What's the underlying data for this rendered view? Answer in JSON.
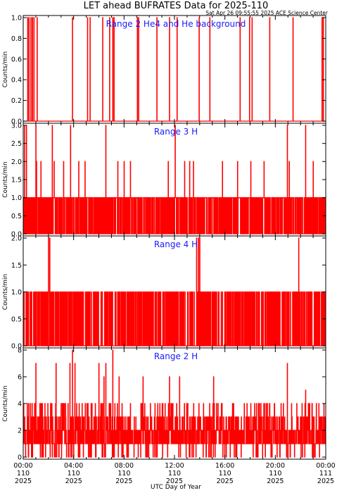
{
  "figure": {
    "title": "LET ahead BUFRATES Data for 2025-110",
    "timestamp": "Sat Apr 26 09:55:55 2025 ACE Science Center",
    "xlabel": "UTC Day of Year",
    "series_color": "#ff0000",
    "label_color": "#1a1aff"
  },
  "chart_data": [
    {
      "type": "line",
      "title": "Range 2 He4 and He background",
      "ylabel": "Counts/min",
      "xlim": [
        0,
        24
      ],
      "ylim": [
        0,
        1.0
      ],
      "yticks": [
        0.0,
        0.2,
        0.4,
        0.6,
        0.8,
        1.0
      ],
      "ytick_labels": [
        "0.0",
        "0.2",
        "0.4",
        "0.6",
        "0.8",
        "1.0"
      ],
      "x_unit": "hours since 2025-110 00:00 UTC",
      "spikes": [
        {
          "x": 0.35,
          "y": 1
        },
        {
          "x": 0.45,
          "y": 1
        },
        {
          "x": 0.6,
          "y": 1
        },
        {
          "x": 0.72,
          "y": 1
        },
        {
          "x": 0.85,
          "y": 1
        },
        {
          "x": 1.1,
          "y": 1
        },
        {
          "x": 3.9,
          "y": 1
        },
        {
          "x": 5.1,
          "y": 1
        },
        {
          "x": 5.3,
          "y": 1
        },
        {
          "x": 6.3,
          "y": 1
        },
        {
          "x": 6.85,
          "y": 1
        },
        {
          "x": 7.1,
          "y": 1
        },
        {
          "x": 7.2,
          "y": 1
        },
        {
          "x": 9.05,
          "y": 1
        },
        {
          "x": 9.15,
          "y": 1
        },
        {
          "x": 10.6,
          "y": 1
        },
        {
          "x": 11.6,
          "y": 1
        },
        {
          "x": 12.2,
          "y": 1
        },
        {
          "x": 13.95,
          "y": 1
        },
        {
          "x": 14.8,
          "y": 1
        },
        {
          "x": 17.2,
          "y": 1
        },
        {
          "x": 17.95,
          "y": 1
        },
        {
          "x": 18.15,
          "y": 1
        },
        {
          "x": 19.55,
          "y": 1
        },
        {
          "x": 21.4,
          "y": 1
        },
        {
          "x": 23.7,
          "y": 1
        },
        {
          "x": 23.8,
          "y": 1
        }
      ]
    },
    {
      "type": "line",
      "title": "Range 3 H",
      "ylabel": "Counts/min",
      "xlim": [
        0,
        24
      ],
      "ylim": [
        0,
        3.0
      ],
      "yticks": [
        0.0,
        0.5,
        1.0,
        1.5,
        2.0,
        2.5,
        3.0
      ],
      "ytick_labels": [
        "0.0",
        "0.5",
        "1.0",
        "1.5",
        "2.0",
        "2.5",
        "3.0"
      ],
      "x_unit": "hours since 2025-110 00:00 UTC",
      "baseline_levels": [
        0,
        1
      ],
      "spikes": [
        {
          "x": 0.1,
          "y": 3
        },
        {
          "x": 0.25,
          "y": 3
        },
        {
          "x": 1.0,
          "y": 3
        },
        {
          "x": 1.05,
          "y": 2
        },
        {
          "x": 1.4,
          "y": 2
        },
        {
          "x": 2.3,
          "y": 3
        },
        {
          "x": 2.45,
          "y": 2
        },
        {
          "x": 3.2,
          "y": 2
        },
        {
          "x": 3.75,
          "y": 3
        },
        {
          "x": 4.4,
          "y": 2
        },
        {
          "x": 4.9,
          "y": 2
        },
        {
          "x": 6.55,
          "y": 3
        },
        {
          "x": 7.5,
          "y": 2
        },
        {
          "x": 8.0,
          "y": 2
        },
        {
          "x": 8.5,
          "y": 2
        },
        {
          "x": 11.5,
          "y": 2
        },
        {
          "x": 12.05,
          "y": 3
        },
        {
          "x": 12.8,
          "y": 2
        },
        {
          "x": 13.2,
          "y": 2
        },
        {
          "x": 13.5,
          "y": 2
        },
        {
          "x": 15.8,
          "y": 2
        },
        {
          "x": 17.0,
          "y": 2
        },
        {
          "x": 18.05,
          "y": 2
        },
        {
          "x": 19.1,
          "y": 2
        },
        {
          "x": 20.95,
          "y": 3
        },
        {
          "x": 21.1,
          "y": 2
        },
        {
          "x": 22.4,
          "y": 3
        },
        {
          "x": 23.0,
          "y": 2
        }
      ]
    },
    {
      "type": "line",
      "title": "Range 4 H",
      "ylabel": "Counts/min",
      "xlim": [
        0,
        24
      ],
      "ylim": [
        0,
        2.0
      ],
      "yticks": [
        0.0,
        0.5,
        1.0,
        1.5,
        2.0
      ],
      "ytick_labels": [
        "0.0",
        "0.5",
        "1.0",
        "1.5",
        "2.0"
      ],
      "x_unit": "hours since 2025-110 00:00 UTC",
      "baseline_levels": [
        0,
        1
      ],
      "spikes": [
        {
          "x": 2.0,
          "y": 2
        },
        {
          "x": 2.1,
          "y": 2
        },
        {
          "x": 13.75,
          "y": 2
        },
        {
          "x": 13.9,
          "y": 2
        },
        {
          "x": 14.0,
          "y": 2
        },
        {
          "x": 21.85,
          "y": 2
        }
      ]
    },
    {
      "type": "line",
      "title": "Range 2 H",
      "ylabel": "Counts/min",
      "xlim": [
        0,
        24
      ],
      "ylim": [
        0,
        8
      ],
      "yticks": [
        0,
        2,
        4,
        6,
        8
      ],
      "ytick_labels": [
        "0",
        "2",
        "4",
        "6",
        "8"
      ],
      "x_unit": "hours since 2025-110 00:00 UTC",
      "typical_range": [
        0,
        4
      ],
      "spikes": [
        {
          "x": 1.0,
          "y": 7
        },
        {
          "x": 2.6,
          "y": 7
        },
        {
          "x": 3.7,
          "y": 7
        },
        {
          "x": 3.9,
          "y": 8
        },
        {
          "x": 4.1,
          "y": 7
        },
        {
          "x": 6.0,
          "y": 7
        },
        {
          "x": 6.4,
          "y": 6
        },
        {
          "x": 6.55,
          "y": 7
        },
        {
          "x": 7.1,
          "y": 8
        },
        {
          "x": 7.6,
          "y": 6
        },
        {
          "x": 9.5,
          "y": 6
        },
        {
          "x": 11.6,
          "y": 6
        },
        {
          "x": 12.4,
          "y": 6
        },
        {
          "x": 15.1,
          "y": 6
        },
        {
          "x": 20.95,
          "y": 7
        },
        {
          "x": 22.4,
          "y": 5
        }
      ]
    }
  ],
  "x_axis": {
    "ticks": [
      0,
      4,
      8,
      12,
      16,
      20,
      24
    ],
    "tick_labels": [
      {
        "time": "00:00",
        "day": "110",
        "year": "2025"
      },
      {
        "time": "04:00",
        "day": "110",
        "year": "2025"
      },
      {
        "time": "08:00",
        "day": "110",
        "year": "2025"
      },
      {
        "time": "12:00",
        "day": "110",
        "year": "2025"
      },
      {
        "time": "16:00",
        "day": "110",
        "year": "2025"
      },
      {
        "time": "20:00",
        "day": "110",
        "year": "2025"
      },
      {
        "time": "00:00",
        "day": "111",
        "year": "2025"
      }
    ]
  }
}
